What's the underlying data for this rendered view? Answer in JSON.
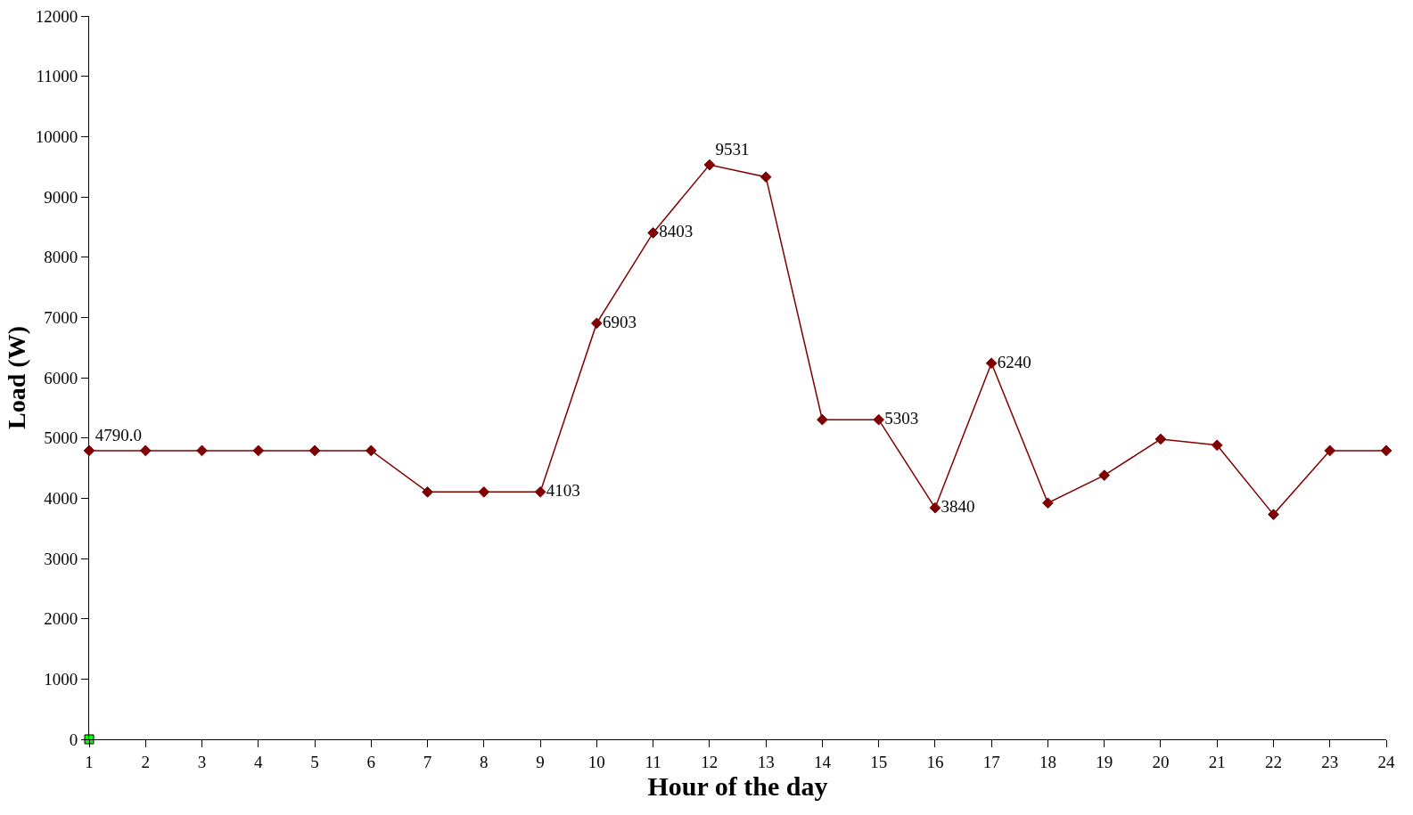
{
  "chart_data": {
    "type": "line",
    "xlabel": "Hour of the day",
    "ylabel": "Load (W)",
    "x": [
      1,
      2,
      3,
      4,
      5,
      6,
      7,
      8,
      9,
      10,
      11,
      12,
      13,
      14,
      15,
      16,
      17,
      18,
      19,
      20,
      21,
      22,
      23,
      24
    ],
    "series": [
      {
        "color": "#800000",
        "values": [
          4790,
          4790,
          4790,
          4790,
          4790,
          4790,
          4103,
          4103,
          4103,
          6903,
          8403,
          9531,
          9330,
          5303,
          5303,
          3840,
          6240,
          3920,
          4380,
          4980,
          4880,
          3730,
          4790,
          4790
        ],
        "value_labels": [
          "4790.0",
          null,
          null,
          null,
          null,
          null,
          null,
          null,
          "4103",
          "6903",
          "8403",
          "9531",
          null,
          null,
          "5303",
          "3840",
          "6240",
          null,
          null,
          null,
          null,
          null,
          null,
          null
        ]
      },
      {
        "type": "scatter",
        "marker": "square",
        "color": "#00ff00",
        "values": [
          0,
          null,
          null,
          null,
          null,
          null,
          null,
          null,
          null,
          null,
          null,
          null,
          null,
          null,
          null,
          null,
          null,
          null,
          null,
          null,
          null,
          null,
          null,
          null
        ]
      }
    ],
    "marker": "diamond",
    "line_style": "solid",
    "xlim": [
      1,
      24
    ],
    "xticks": [
      1,
      2,
      3,
      4,
      5,
      6,
      7,
      8,
      9,
      10,
      11,
      12,
      13,
      14,
      15,
      16,
      17,
      18,
      19,
      20,
      21,
      22,
      23,
      24
    ],
    "ylim": [
      0,
      12000
    ],
    "yticks": [
      0,
      1000,
      2000,
      3000,
      4000,
      5000,
      6000,
      7000,
      8000,
      9000,
      10000,
      11000,
      12000
    ],
    "grid": false
  }
}
